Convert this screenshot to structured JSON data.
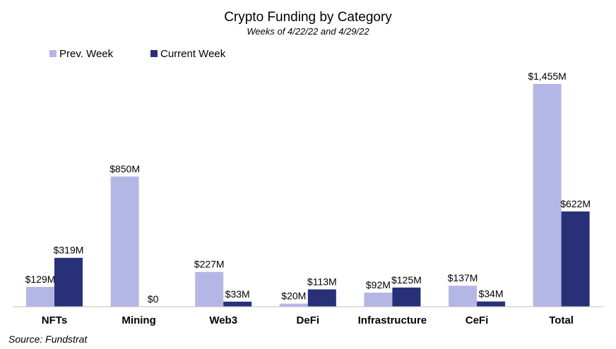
{
  "chart_data": {
    "type": "bar",
    "title": "Crypto Funding by Category",
    "subtitle": "Weeks of 4/22/22 and 4/29/22",
    "categories": [
      "NFTs",
      "Mining",
      "Web3",
      "DeFi",
      "Infrastructure",
      "CeFi",
      "Total"
    ],
    "series": [
      {
        "name": "Prev. Week",
        "color": "#b4b7e6",
        "values": [
          129,
          850,
          227,
          20,
          92,
          137,
          1455
        ],
        "labels": [
          "$129M",
          "$850M",
          "$227M",
          "$20M",
          "$92M",
          "$137M",
          "$1,455M"
        ]
      },
      {
        "name": "Current Week",
        "color": "#283078",
        "values": [
          319,
          0,
          33,
          113,
          125,
          34,
          622
        ],
        "labels": [
          "$319M",
          "$0",
          "$33M",
          "$113M",
          "$125M",
          "$34M",
          "$622M"
        ]
      }
    ],
    "ylim": [
      0,
      1455
    ],
    "legend": "top-left",
    "grid": false,
    "source": "Source: Fundstrat"
  }
}
